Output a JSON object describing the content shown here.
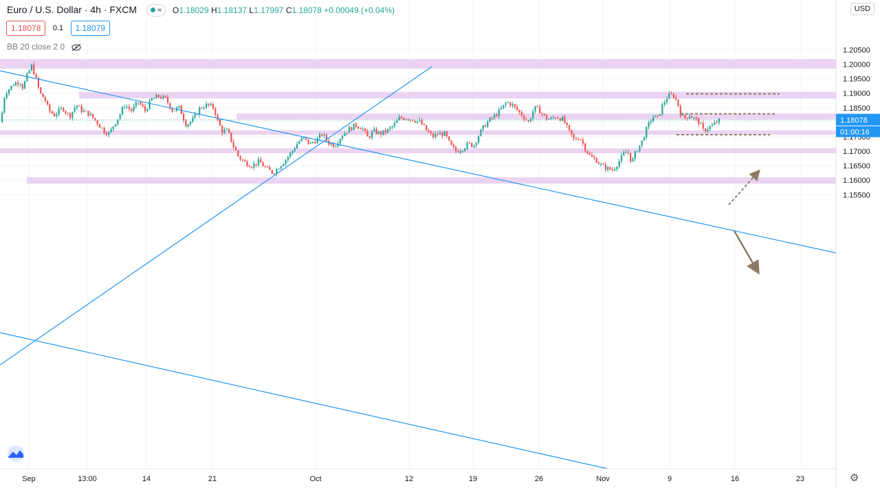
{
  "header": {
    "symbol": "Euro / U.S. Dollar · 4h · FXCM",
    "ohlc": [
      {
        "label": "O",
        "value": "1.18029"
      },
      {
        "label": "H",
        "value": "1.18137"
      },
      {
        "label": "L",
        "value": "1.17997"
      },
      {
        "label": "C",
        "value": "1.18078"
      },
      {
        "label": "",
        "value": "+0.00049 (+0.04%)"
      }
    ],
    "bid": "1.18078",
    "spread": "0.1",
    "ask": "1.18079",
    "indicator": "BB 20 close 2 0",
    "currency": "USD"
  },
  "colors": {
    "up": "#26a69a",
    "down": "#ef5350",
    "zone": "#e7cdee",
    "trendline": "#2196f3",
    "arrow": "#8d7b64",
    "last_price_bg": "#2196f3"
  },
  "chart_data": {
    "type": "candlestick",
    "symbol": "EURUSD",
    "timeframe": "4h",
    "last_price": 1.18078,
    "countdown": "01:00:16",
    "y_range": [
      1.151,
      1.21
    ],
    "y_ticks": [
      "1.15500",
      "1.16000",
      "1.16500",
      "1.17000",
      "1.17500",
      "1.18000",
      "1.18500",
      "1.19000",
      "1.19500",
      "1.20000",
      "1.20500"
    ],
    "x_ticks": [
      "Sep",
      "13:00",
      "14",
      "21",
      "Oct",
      "12",
      "19",
      "26",
      "Nov",
      "9",
      "16",
      "23"
    ],
    "series_close_path": [
      [
        0,
        1.18
      ],
      [
        6,
        1.19
      ],
      [
        14,
        1.192
      ],
      [
        20,
        1.1935
      ],
      [
        28,
        1.194
      ],
      [
        32,
        1.192
      ],
      [
        40,
        1.197
      ],
      [
        45,
        1.1995
      ],
      [
        50,
        1.196
      ],
      [
        57,
        1.19
      ],
      [
        64,
        1.188
      ],
      [
        70,
        1.184
      ],
      [
        78,
        1.1825
      ],
      [
        90,
        1.185
      ],
      [
        100,
        1.182
      ],
      [
        110,
        1.186
      ],
      [
        118,
        1.184
      ],
      [
        128,
        1.183
      ],
      [
        140,
        1.18
      ],
      [
        150,
        1.177
      ],
      [
        158,
        1.176
      ],
      [
        164,
        1.179
      ],
      [
        172,
        1.182
      ],
      [
        180,
        1.186
      ],
      [
        190,
        1.184
      ],
      [
        200,
        1.187
      ],
      [
        210,
        1.184
      ],
      [
        220,
        1.188
      ],
      [
        230,
        1.189
      ],
      [
        240,
        1.188
      ],
      [
        250,
        1.184
      ],
      [
        260,
        1.185
      ],
      [
        270,
        1.179
      ],
      [
        280,
        1.181
      ],
      [
        290,
        1.185
      ],
      [
        300,
        1.186
      ],
      [
        310,
        1.185
      ],
      [
        316,
        1.18
      ],
      [
        322,
        1.177
      ],
      [
        330,
        1.177
      ],
      [
        338,
        1.172
      ],
      [
        346,
        1.168
      ],
      [
        356,
        1.166
      ],
      [
        366,
        1.165
      ],
      [
        376,
        1.1665
      ],
      [
        386,
        1.164
      ],
      [
        396,
        1.1625
      ],
      [
        404,
        1.1645
      ],
      [
        414,
        1.167
      ],
      [
        424,
        1.17
      ],
      [
        432,
        1.173
      ],
      [
        440,
        1.1745
      ],
      [
        450,
        1.1725
      ],
      [
        460,
        1.174
      ],
      [
        468,
        1.176
      ],
      [
        476,
        1.173
      ],
      [
        486,
        1.172
      ],
      [
        496,
        1.1755
      ],
      [
        506,
        1.1775
      ],
      [
        516,
        1.179
      ],
      [
        526,
        1.178
      ],
      [
        534,
        1.1745
      ],
      [
        542,
        1.177
      ],
      [
        552,
        1.176
      ],
      [
        562,
        1.177
      ],
      [
        572,
        1.179
      ],
      [
        580,
        1.1815
      ],
      [
        590,
        1.1815
      ],
      [
        600,
        1.181
      ],
      [
        610,
        1.18
      ],
      [
        620,
        1.177
      ],
      [
        628,
        1.175
      ],
      [
        636,
        1.176
      ],
      [
        646,
        1.176
      ],
      [
        654,
        1.172
      ],
      [
        662,
        1.17
      ],
      [
        672,
        1.171
      ],
      [
        680,
        1.1725
      ],
      [
        688,
        1.172
      ],
      [
        696,
        1.176
      ],
      [
        704,
        1.179
      ],
      [
        712,
        1.181
      ],
      [
        720,
        1.1825
      ],
      [
        728,
        1.1845
      ],
      [
        736,
        1.187
      ],
      [
        744,
        1.186
      ],
      [
        752,
        1.184
      ],
      [
        760,
        1.182
      ],
      [
        768,
        1.18
      ],
      [
        776,
        1.185
      ],
      [
        784,
        1.184
      ],
      [
        792,
        1.1815
      ],
      [
        800,
        1.181
      ],
      [
        808,
        1.182
      ],
      [
        818,
        1.181
      ],
      [
        826,
        1.177
      ],
      [
        834,
        1.174
      ],
      [
        842,
        1.175
      ],
      [
        850,
        1.171
      ],
      [
        858,
        1.168
      ],
      [
        866,
        1.167
      ],
      [
        874,
        1.165
      ],
      [
        882,
        1.164
      ],
      [
        890,
        1.1635
      ],
      [
        898,
        1.166
      ],
      [
        906,
        1.169
      ],
      [
        912,
        1.17
      ],
      [
        918,
        1.166
      ],
      [
        924,
        1.17
      ],
      [
        932,
        1.173
      ],
      [
        940,
        1.178
      ],
      [
        948,
        1.182
      ],
      [
        956,
        1.1815
      ],
      [
        962,
        1.1855
      ],
      [
        970,
        1.189
      ],
      [
        978,
        1.1895
      ],
      [
        984,
        1.187
      ],
      [
        990,
        1.182
      ],
      [
        996,
        1.1815
      ],
      [
        1002,
        1.1825
      ],
      [
        1010,
        1.181
      ],
      [
        1016,
        1.18
      ],
      [
        1022,
        1.177
      ],
      [
        1028,
        1.178
      ],
      [
        1036,
        1.179
      ],
      [
        1044,
        1.1805
      ]
    ],
    "zones": [
      {
        "from": 1.1985,
        "to": 1.2018
      },
      {
        "from": 1.1882,
        "to": 1.1905
      },
      {
        "from": 1.181,
        "to": 1.183
      },
      {
        "from": 1.1757,
        "to": 1.1772
      },
      {
        "from": 1.1693,
        "to": 1.171
      },
      {
        "from": 1.1588,
        "to": 1.161
      }
    ],
    "levels": [
      1.1898,
      1.1829,
      1.1757
    ],
    "grid": true
  }
}
